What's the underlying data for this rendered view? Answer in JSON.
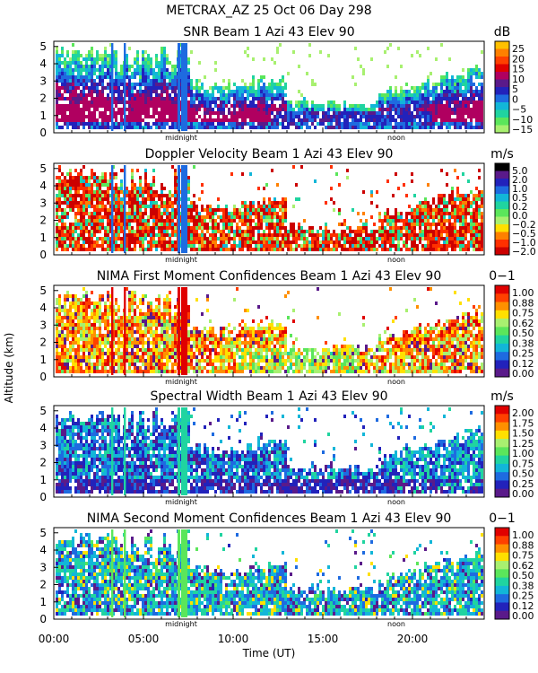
{
  "figure": {
    "title": "METCRAX_AZ  25 Oct 06 Day 298",
    "ylabel": "Altitude (km)",
    "xlabel": "Time (UT)",
    "xticks": [
      "00:00",
      "05:00",
      "10:00",
      "15:00",
      "20:00"
    ],
    "yticks": [
      "0",
      "1",
      "2",
      "3",
      "4",
      "5"
    ],
    "markers": [
      "midnight",
      "noon"
    ]
  },
  "chart_data": [
    {
      "type": "heatmap",
      "title": "SNR Beam 1 Azi  43 Elev 90",
      "unit": "dB",
      "xlim": [
        0,
        24
      ],
      "ylim": [
        0,
        5.3
      ],
      "colorbar": {
        "ticks": [
          "25",
          "20",
          "15",
          "10",
          "5",
          "0",
          "−5",
          "−10",
          "−15"
        ],
        "colors": [
          "#ffc000",
          "#ff8000",
          "#ff4000",
          "#e00000",
          "#b00060",
          "#5a1a8a",
          "#2222bb",
          "#1e6be0",
          "#12b6d8",
          "#20d4a0",
          "#5be65b",
          "#a8f070"
        ]
      }
    },
    {
      "type": "heatmap",
      "title": "Doppler Velocity Beam 1 Azi  43 Elev 90",
      "unit": "m/s",
      "xlim": [
        0,
        24
      ],
      "ylim": [
        0,
        5.3
      ],
      "colorbar": {
        "ticks": [
          "5.0",
          "2.0",
          "1.0",
          "0.5",
          "0.2",
          "0.0",
          "−0.2",
          "−0.5",
          "−1.0",
          "−2.0"
        ],
        "colors": [
          "#000000",
          "#5a1a8a",
          "#2222bb",
          "#1e6be0",
          "#12b6d8",
          "#20d4a0",
          "#5be65b",
          "#a8f070",
          "#ffe000",
          "#ff8000",
          "#ff3000",
          "#cc0000"
        ]
      }
    },
    {
      "type": "heatmap",
      "title": "NIMA First Moment Confidences Beam 1 Azi  43 Elev 90",
      "unit": "0−1",
      "xlim": [
        0,
        24
      ],
      "ylim": [
        0,
        5.3
      ],
      "colorbar": {
        "ticks": [
          "1.00",
          "0.88",
          "0.75",
          "0.62",
          "0.50",
          "0.38",
          "0.25",
          "0.12",
          "0.00"
        ],
        "colors": [
          "#e00000",
          "#ff4000",
          "#ff9000",
          "#ffe000",
          "#a8f070",
          "#5be65b",
          "#20d4a0",
          "#12b6d8",
          "#1e6be0",
          "#2222bb",
          "#5a1a8a"
        ]
      }
    },
    {
      "type": "heatmap",
      "title": "Spectral Width Beam 1 Azi  43 Elev 90",
      "unit": "m/s",
      "xlim": [
        0,
        24
      ],
      "ylim": [
        0,
        5.3
      ],
      "colorbar": {
        "ticks": [
          "2.00",
          "1.75",
          "1.50",
          "1.25",
          "1.00",
          "0.75",
          "0.50",
          "0.25",
          "0.00"
        ],
        "colors": [
          "#e00000",
          "#ff4000",
          "#ff9000",
          "#ffe000",
          "#a8f070",
          "#5be65b",
          "#20d4a0",
          "#12b6d8",
          "#1e6be0",
          "#2222bb",
          "#5a1a8a"
        ]
      }
    },
    {
      "type": "heatmap",
      "title": "NIMA Second Moment Confidences Beam 1 Azi  43 Elev 90",
      "unit": "0−1",
      "xlim": [
        0,
        24
      ],
      "ylim": [
        0,
        5.3
      ],
      "colorbar": {
        "ticks": [
          "1.00",
          "0.88",
          "0.75",
          "0.62",
          "0.50",
          "0.38",
          "0.25",
          "0.12",
          "0.00"
        ],
        "colors": [
          "#e00000",
          "#ff4000",
          "#ff9000",
          "#ffe000",
          "#a8f070",
          "#5be65b",
          "#20d4a0",
          "#12b6d8",
          "#1e6be0",
          "#2222bb",
          "#5a1a8a"
        ]
      }
    }
  ]
}
